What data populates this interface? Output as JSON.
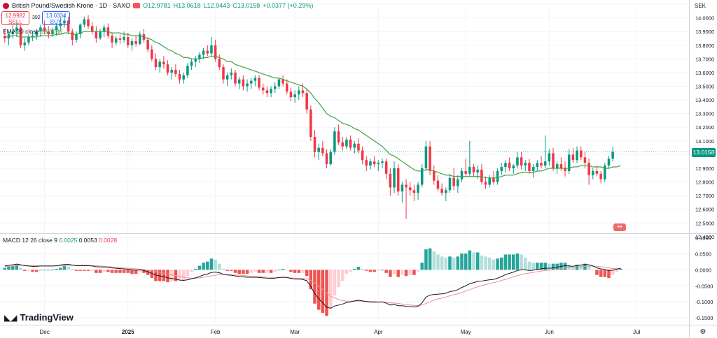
{
  "header": {
    "symbol": "British Pound/Swedish Krone · 1D · SAXO",
    "open": "O12.9781",
    "high": "H13.0618",
    "low": "L12.9443",
    "close": "C13.0158",
    "change": "+0.0377 (+0.29%)"
  },
  "trade": {
    "sell_price": "12.9982",
    "sell_label": "SELL",
    "spread": "392",
    "buy_price": "13.0334",
    "buy_label": "BUY"
  },
  "ema_legend": {
    "label": "EMA 20 close",
    "value": "13.0086"
  },
  "macd_legend": {
    "label": "MACD 12 26 close 9",
    "hist": "0.0025",
    "macd": "0.0053",
    "signal": "0.0028"
  },
  "currency": "SEK",
  "last_price": "13.0158",
  "logo_text": "TradingView",
  "colors": {
    "up": "#089981",
    "down": "#f23645",
    "ema": "#43a047",
    "macd": "#131722",
    "signal": "#f0918f",
    "hist_up": "#26a69a",
    "hist_up_light": "#b2dfdb",
    "hist_down": "#ef5350",
    "hist_down_light": "#ffcdd2"
  },
  "chart_data": {
    "type": "candlestick",
    "price_axis": {
      "ylim": [
        12.43,
        14.09
      ],
      "ticks": [
        "14.1000",
        "14.0000",
        "13.9000",
        "13.8000",
        "13.7000",
        "13.6000",
        "13.5000",
        "13.4000",
        "13.3000",
        "13.2000",
        "13.1000",
        "13.0000",
        "12.9000",
        "12.8000",
        "12.7000",
        "12.6000",
        "12.5000",
        "12.4000"
      ]
    },
    "macd_axis": {
      "ylim": [
        -0.165,
        0.11
      ],
      "ticks": [
        "0.1000",
        "0.0500",
        "0.0000",
        "-0.0500",
        "-0.1000",
        "-0.1500"
      ]
    },
    "x_labels": [
      {
        "label": "Dec",
        "i": 10
      },
      {
        "label": "2025",
        "i": 31
      },
      {
        "label": "Feb",
        "i": 53
      },
      {
        "label": "Mar",
        "i": 73
      },
      {
        "label": "Apr",
        "i": 94
      },
      {
        "label": "May",
        "i": 116
      },
      {
        "label": "Jun",
        "i": 137
      },
      {
        "label": "Jul",
        "i": 159
      }
    ],
    "ohlc": [
      [
        13.87,
        13.92,
        13.82,
        13.85
      ],
      [
        13.85,
        13.9,
        13.8,
        13.88
      ],
      [
        13.88,
        13.95,
        13.85,
        13.9
      ],
      [
        13.9,
        13.97,
        13.86,
        13.93
      ],
      [
        13.93,
        13.95,
        13.78,
        13.8
      ],
      [
        13.8,
        13.85,
        13.76,
        13.82
      ],
      [
        13.82,
        13.88,
        13.8,
        13.86
      ],
      [
        13.86,
        13.9,
        13.83,
        13.87
      ],
      [
        13.87,
        13.92,
        13.84,
        13.9
      ],
      [
        13.9,
        13.95,
        13.86,
        13.93
      ],
      [
        13.93,
        13.98,
        13.88,
        13.9
      ],
      [
        13.9,
        13.94,
        13.85,
        13.88
      ],
      [
        13.88,
        13.93,
        13.86,
        13.91
      ],
      [
        13.91,
        13.96,
        13.87,
        13.94
      ],
      [
        13.94,
        14.0,
        13.9,
        13.96
      ],
      [
        13.96,
        14.02,
        13.93,
        13.98
      ],
      [
        13.98,
        14.01,
        13.88,
        13.9
      ],
      [
        13.9,
        13.92,
        13.8,
        13.84
      ],
      [
        13.84,
        13.9,
        13.82,
        13.88
      ],
      [
        13.88,
        13.96,
        13.85,
        13.95
      ],
      [
        13.95,
        14.01,
        13.93,
        13.99
      ],
      [
        13.99,
        14.02,
        13.92,
        13.94
      ],
      [
        13.94,
        13.97,
        13.88,
        13.9
      ],
      [
        13.9,
        13.94,
        13.82,
        13.85
      ],
      [
        13.85,
        13.92,
        13.84,
        13.9
      ],
      [
        13.9,
        13.95,
        13.86,
        13.93
      ],
      [
        13.93,
        13.96,
        13.85,
        13.87
      ],
      [
        13.87,
        13.89,
        13.78,
        13.82
      ],
      [
        13.82,
        13.87,
        13.8,
        13.85
      ],
      [
        13.85,
        13.88,
        13.81,
        13.84
      ],
      [
        13.84,
        13.9,
        13.82,
        13.86
      ],
      [
        13.86,
        13.89,
        13.78,
        13.8
      ],
      [
        13.8,
        13.85,
        13.76,
        13.83
      ],
      [
        13.83,
        13.87,
        13.79,
        13.81
      ],
      [
        13.81,
        13.9,
        13.8,
        13.88
      ],
      [
        13.88,
        13.92,
        13.82,
        13.84
      ],
      [
        13.84,
        13.86,
        13.75,
        13.77
      ],
      [
        13.77,
        13.8,
        13.68,
        13.7
      ],
      [
        13.7,
        13.74,
        13.62,
        13.64
      ],
      [
        13.64,
        13.7,
        13.6,
        13.68
      ],
      [
        13.68,
        13.72,
        13.63,
        13.66
      ],
      [
        13.66,
        13.69,
        13.58,
        13.6
      ],
      [
        13.6,
        13.64,
        13.55,
        13.62
      ],
      [
        13.62,
        13.66,
        13.57,
        13.59
      ],
      [
        13.59,
        13.62,
        13.52,
        13.55
      ],
      [
        13.55,
        13.6,
        13.52,
        13.58
      ],
      [
        13.58,
        13.67,
        13.56,
        13.65
      ],
      [
        13.65,
        13.7,
        13.62,
        13.68
      ],
      [
        13.68,
        13.72,
        13.64,
        13.7
      ],
      [
        13.7,
        13.75,
        13.67,
        13.73
      ],
      [
        13.73,
        13.78,
        13.7,
        13.76
      ],
      [
        13.76,
        13.8,
        13.72,
        13.74
      ],
      [
        13.74,
        13.86,
        13.72,
        13.8
      ],
      [
        13.8,
        13.84,
        13.68,
        13.7
      ],
      [
        13.7,
        13.73,
        13.62,
        13.64
      ],
      [
        13.64,
        13.66,
        13.52,
        13.55
      ],
      [
        13.55,
        13.6,
        13.5,
        13.58
      ],
      [
        13.58,
        13.63,
        13.55,
        13.6
      ],
      [
        13.6,
        13.62,
        13.5,
        13.52
      ],
      [
        13.52,
        13.57,
        13.48,
        13.55
      ],
      [
        13.55,
        13.58,
        13.47,
        13.5
      ],
      [
        13.5,
        13.55,
        13.46,
        13.52
      ],
      [
        13.52,
        13.56,
        13.48,
        13.54
      ],
      [
        13.54,
        13.58,
        13.5,
        13.56
      ],
      [
        13.56,
        13.58,
        13.47,
        13.49
      ],
      [
        13.49,
        13.52,
        13.44,
        13.47
      ],
      [
        13.47,
        13.5,
        13.42,
        13.45
      ],
      [
        13.45,
        13.5,
        13.42,
        13.48
      ],
      [
        13.48,
        13.53,
        13.45,
        13.5
      ],
      [
        13.5,
        13.56,
        13.48,
        13.55
      ],
      [
        13.55,
        13.58,
        13.5,
        13.52
      ],
      [
        13.52,
        13.55,
        13.44,
        13.46
      ],
      [
        13.46,
        13.49,
        13.39,
        13.42
      ],
      [
        13.42,
        13.47,
        13.38,
        13.44
      ],
      [
        13.44,
        13.5,
        13.4,
        13.47
      ],
      [
        13.47,
        13.52,
        13.42,
        13.45
      ],
      [
        13.45,
        13.48,
        13.3,
        13.33
      ],
      [
        13.33,
        13.36,
        13.1,
        13.13
      ],
      [
        13.13,
        13.18,
        12.98,
        13.02
      ],
      [
        13.02,
        13.08,
        12.96,
        13.05
      ],
      [
        13.05,
        13.1,
        12.99,
        13.01
      ],
      [
        13.01,
        13.04,
        12.9,
        12.93
      ],
      [
        12.93,
        13.04,
        12.92,
        13.02
      ],
      [
        13.02,
        13.2,
        13.0,
        13.17
      ],
      [
        13.17,
        13.22,
        13.07,
        13.09
      ],
      [
        13.09,
        13.13,
        13.03,
        13.06
      ],
      [
        13.06,
        13.13,
        13.04,
        13.11
      ],
      [
        13.11,
        13.14,
        13.03,
        13.05
      ],
      [
        13.05,
        13.1,
        13.01,
        13.08
      ],
      [
        13.08,
        13.12,
        13.01,
        13.03
      ],
      [
        13.03,
        13.06,
        12.93,
        12.96
      ],
      [
        12.96,
        12.99,
        12.88,
        12.92
      ],
      [
        12.92,
        12.97,
        12.89,
        12.95
      ],
      [
        12.95,
        12.99,
        12.91,
        12.93
      ],
      [
        12.93,
        12.96,
        12.88,
        12.94
      ],
      [
        12.94,
        12.97,
        12.9,
        12.95
      ],
      [
        12.95,
        12.97,
        12.82,
        12.86
      ],
      [
        12.86,
        12.9,
        12.7,
        12.76
      ],
      [
        12.76,
        12.95,
        12.72,
        12.9
      ],
      [
        12.9,
        12.93,
        12.7,
        12.73
      ],
      [
        12.73,
        12.8,
        12.65,
        12.78
      ],
      [
        12.78,
        12.82,
        12.53,
        12.76
      ],
      [
        12.76,
        12.8,
        12.7,
        12.74
      ],
      [
        12.74,
        12.78,
        12.66,
        12.72
      ],
      [
        12.72,
        12.8,
        12.67,
        12.78
      ],
      [
        12.78,
        12.93,
        12.76,
        12.9
      ],
      [
        12.9,
        13.1,
        12.88,
        13.06
      ],
      [
        13.06,
        13.1,
        12.85,
        12.88
      ],
      [
        12.88,
        12.92,
        12.78,
        12.81
      ],
      [
        12.81,
        12.85,
        12.73,
        12.75
      ],
      [
        12.75,
        12.79,
        12.7,
        12.72
      ],
      [
        12.72,
        12.76,
        12.66,
        12.74
      ],
      [
        12.74,
        12.86,
        12.72,
        12.83
      ],
      [
        12.83,
        12.9,
        12.74,
        12.77
      ],
      [
        12.77,
        12.85,
        12.72,
        12.82
      ],
      [
        12.82,
        12.9,
        12.8,
        12.88
      ],
      [
        12.88,
        12.97,
        12.84,
        12.86
      ],
      [
        12.86,
        13.1,
        12.84,
        12.91
      ],
      [
        12.91,
        12.93,
        12.84,
        12.87
      ],
      [
        12.87,
        12.92,
        12.82,
        12.89
      ],
      [
        12.89,
        12.93,
        12.78,
        12.8
      ],
      [
        12.8,
        12.84,
        12.75,
        12.78
      ],
      [
        12.78,
        12.85,
        12.76,
        12.83
      ],
      [
        12.83,
        12.88,
        12.78,
        12.8
      ],
      [
        12.8,
        12.9,
        12.78,
        12.88
      ],
      [
        12.88,
        12.94,
        12.85,
        12.91
      ],
      [
        12.91,
        12.96,
        12.87,
        12.94
      ],
      [
        12.94,
        12.98,
        12.88,
        12.9
      ],
      [
        12.9,
        12.93,
        12.86,
        12.92
      ],
      [
        12.92,
        13.02,
        12.9,
        12.98
      ],
      [
        12.98,
        13.02,
        12.89,
        12.92
      ],
      [
        12.92,
        12.96,
        12.88,
        12.94
      ],
      [
        12.94,
        12.97,
        12.86,
        12.88
      ],
      [
        12.88,
        12.93,
        12.83,
        12.91
      ],
      [
        12.91,
        12.96,
        12.88,
        12.94
      ],
      [
        12.94,
        12.99,
        12.9,
        12.92
      ],
      [
        12.92,
        13.14,
        12.9,
        12.95
      ],
      [
        12.95,
        13.04,
        12.92,
        13.01
      ],
      [
        13.01,
        13.05,
        12.88,
        12.9
      ],
      [
        12.9,
        12.95,
        12.86,
        12.93
      ],
      [
        12.93,
        12.98,
        12.88,
        12.9
      ],
      [
        12.9,
        12.95,
        12.84,
        12.88
      ],
      [
        12.88,
        13.04,
        12.86,
        13.0
      ],
      [
        13.0,
        13.05,
        12.94,
        12.96
      ],
      [
        12.96,
        13.06,
        12.94,
        13.03
      ],
      [
        13.03,
        13.06,
        12.96,
        12.98
      ],
      [
        12.98,
        13.02,
        12.9,
        12.94
      ],
      [
        12.94,
        12.97,
        12.78,
        12.85
      ],
      [
        12.85,
        12.9,
        12.82,
        12.88
      ],
      [
        12.88,
        12.92,
        12.84,
        12.86
      ],
      [
        12.86,
        12.88,
        12.79,
        12.82
      ],
      [
        12.82,
        12.94,
        12.8,
        12.92
      ],
      [
        12.92,
        12.99,
        12.9,
        12.97
      ],
      [
        12.97,
        13.06,
        12.95,
        13.02
      ]
    ],
    "ema20": [
      13.86,
      13.86,
      13.87,
      13.87,
      13.86,
      13.86,
      13.86,
      13.86,
      13.86,
      13.87,
      13.87,
      13.87,
      13.87,
      13.88,
      13.88,
      13.89,
      13.89,
      13.88,
      13.88,
      13.89,
      13.9,
      13.9,
      13.9,
      13.9,
      13.9,
      13.9,
      13.9,
      13.89,
      13.89,
      13.89,
      13.88,
      13.88,
      13.87,
      13.87,
      13.87,
      13.86,
      13.85,
      13.84,
      13.82,
      13.81,
      13.79,
      13.77,
      13.76,
      13.74,
      13.73,
      13.71,
      13.71,
      13.7,
      13.7,
      13.7,
      13.71,
      13.71,
      13.72,
      13.72,
      13.71,
      13.7,
      13.68,
      13.68,
      13.66,
      13.65,
      13.64,
      13.63,
      13.62,
      13.61,
      13.6,
      13.59,
      13.58,
      13.57,
      13.56,
      13.56,
      13.55,
      13.54,
      13.53,
      13.52,
      13.51,
      13.5,
      13.48,
      13.45,
      13.41,
      13.38,
      13.34,
      13.3,
      13.28,
      13.27,
      13.25,
      13.23,
      13.22,
      13.21,
      13.19,
      13.18,
      13.16,
      13.14,
      13.12,
      13.1,
      13.08,
      13.06,
      13.03,
      13.0,
      12.99,
      12.97,
      12.95,
      12.93,
      12.91,
      12.89,
      12.88,
      12.88,
      12.89,
      12.89,
      12.88,
      12.87,
      12.86,
      12.85,
      12.85,
      12.84,
      12.84,
      12.84,
      12.84,
      12.84,
      12.84,
      12.84,
      12.84,
      12.83,
      12.83,
      12.83,
      12.83,
      12.84,
      12.85,
      12.85,
      12.85,
      12.86,
      12.87,
      12.87,
      12.87,
      12.87,
      12.88,
      12.88,
      12.89,
      12.9,
      12.9,
      12.9,
      12.9,
      12.9,
      12.9,
      12.91,
      12.91,
      12.92,
      12.92,
      12.92,
      12.91,
      12.91,
      12.91,
      12.9,
      12.9,
      12.91,
      12.91,
      12.92
    ],
    "macd": [
      0.012,
      0.014,
      0.016,
      0.018,
      0.016,
      0.013,
      0.012,
      0.011,
      0.011,
      0.012,
      0.012,
      0.012,
      0.012,
      0.013,
      0.015,
      0.017,
      0.017,
      0.015,
      0.013,
      0.013,
      0.013,
      0.013,
      0.012,
      0.01,
      0.009,
      0.009,
      0.008,
      0.006,
      0.005,
      0.004,
      0.003,
      0.002,
      0.0,
      -0.001,
      0.0,
      -0.002,
      -0.006,
      -0.011,
      -0.016,
      -0.019,
      -0.021,
      -0.025,
      -0.027,
      -0.029,
      -0.032,
      -0.033,
      -0.031,
      -0.028,
      -0.025,
      -0.021,
      -0.016,
      -0.013,
      -0.008,
      -0.007,
      -0.009,
      -0.014,
      -0.016,
      -0.017,
      -0.019,
      -0.021,
      -0.022,
      -0.023,
      -0.023,
      -0.023,
      -0.024,
      -0.025,
      -0.026,
      -0.027,
      -0.026,
      -0.024,
      -0.023,
      -0.024,
      -0.027,
      -0.029,
      -0.029,
      -0.03,
      -0.034,
      -0.052,
      -0.074,
      -0.09,
      -0.103,
      -0.117,
      -0.12,
      -0.113,
      -0.11,
      -0.107,
      -0.102,
      -0.1,
      -0.097,
      -0.095,
      -0.097,
      -0.099,
      -0.101,
      -0.101,
      -0.101,
      -0.1,
      -0.104,
      -0.11,
      -0.108,
      -0.112,
      -0.112,
      -0.114,
      -0.115,
      -0.116,
      -0.114,
      -0.103,
      -0.085,
      -0.079,
      -0.077,
      -0.076,
      -0.075,
      -0.073,
      -0.068,
      -0.066,
      -0.062,
      -0.055,
      -0.05,
      -0.043,
      -0.04,
      -0.036,
      -0.035,
      -0.033,
      -0.031,
      -0.03,
      -0.026,
      -0.021,
      -0.015,
      -0.011,
      -0.007,
      -0.002,
      0.0,
      0.0,
      -0.002,
      -0.001,
      0.001,
      0.003,
      0.005,
      0.005,
      0.006,
      0.008,
      0.011,
      0.013,
      0.012,
      0.011,
      0.014,
      0.015,
      0.017,
      0.016,
      0.012,
      0.006,
      0.003,
      0.001,
      -0.002,
      -0.001,
      0.002,
      0.005
    ],
    "signal": [
      0.01,
      0.011,
      0.012,
      0.013,
      0.014,
      0.014,
      0.013,
      0.013,
      0.013,
      0.012,
      0.012,
      0.012,
      0.012,
      0.012,
      0.013,
      0.013,
      0.014,
      0.014,
      0.014,
      0.014,
      0.014,
      0.014,
      0.013,
      0.013,
      0.012,
      0.011,
      0.01,
      0.009,
      0.008,
      0.007,
      0.006,
      0.005,
      0.004,
      0.003,
      0.002,
      0.001,
      -0.001,
      -0.003,
      -0.005,
      -0.008,
      -0.01,
      -0.013,
      -0.016,
      -0.018,
      -0.021,
      -0.023,
      -0.025,
      -0.026,
      -0.026,
      -0.025,
      -0.023,
      -0.021,
      -0.019,
      -0.017,
      -0.015,
      -0.015,
      -0.015,
      -0.016,
      -0.016,
      -0.017,
      -0.018,
      -0.019,
      -0.02,
      -0.021,
      -0.021,
      -0.022,
      -0.023,
      -0.024,
      -0.024,
      -0.024,
      -0.024,
      -0.024,
      -0.025,
      -0.026,
      -0.026,
      -0.027,
      -0.028,
      -0.033,
      -0.041,
      -0.051,
      -0.061,
      -0.072,
      -0.082,
      -0.088,
      -0.093,
      -0.096,
      -0.098,
      -0.098,
      -0.098,
      -0.098,
      -0.098,
      -0.098,
      -0.099,
      -0.099,
      -0.1,
      -0.1,
      -0.101,
      -0.103,
      -0.104,
      -0.105,
      -0.107,
      -0.108,
      -0.11,
      -0.111,
      -0.112,
      -0.11,
      -0.105,
      -0.1,
      -0.095,
      -0.091,
      -0.088,
      -0.085,
      -0.081,
      -0.078,
      -0.075,
      -0.071,
      -0.066,
      -0.062,
      -0.057,
      -0.053,
      -0.049,
      -0.046,
      -0.043,
      -0.04,
      -0.037,
      -0.033,
      -0.03,
      -0.026,
      -0.022,
      -0.018,
      -0.015,
      -0.012,
      -0.01,
      -0.008,
      -0.006,
      -0.004,
      -0.002,
      -0.001,
      0.0,
      0.002,
      0.004,
      0.006,
      0.007,
      0.008,
      0.009,
      0.01,
      0.011,
      0.012,
      0.012,
      0.011,
      0.01,
      0.008,
      0.006,
      0.004,
      0.004,
      0.004
    ]
  }
}
